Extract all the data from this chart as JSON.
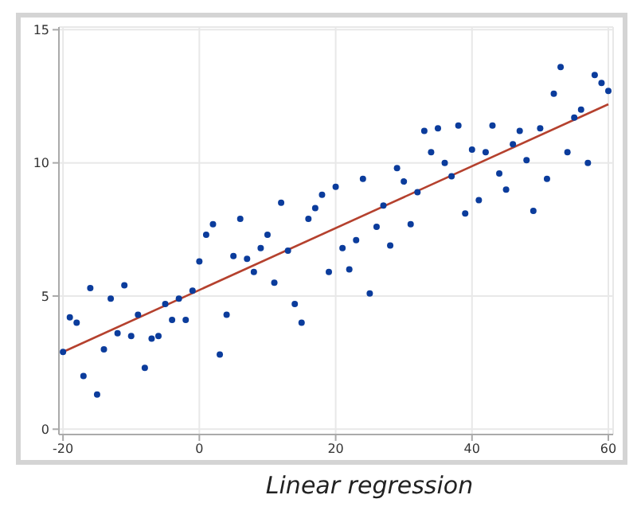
{
  "chart_data": {
    "type": "scatter",
    "title": "Linear regression",
    "xlim": [
      -20.6,
      60.7
    ],
    "xticks": [
      -20,
      0,
      20,
      40,
      60
    ],
    "ylim": [
      -0.2,
      15.1
    ],
    "yticks": [
      0,
      5,
      10,
      15
    ],
    "grid": true,
    "marker": "circle",
    "series": [
      {
        "color": "#0b3c9c",
        "x": [
          -20,
          -19,
          -18,
          -17,
          -16,
          -15,
          -14,
          -13,
          -12,
          -11,
          -10,
          -9,
          -8,
          -7,
          -6,
          -5,
          -4,
          -3,
          -2,
          -1,
          0,
          1,
          2,
          3,
          4,
          5,
          6,
          7,
          8,
          9,
          10,
          11,
          12,
          13,
          14,
          15,
          16,
          17,
          18,
          19,
          20,
          21,
          22,
          23,
          24,
          25,
          26,
          27,
          28,
          29,
          30,
          31,
          32,
          33,
          34,
          35,
          36,
          37,
          38,
          39,
          40,
          41,
          42,
          43,
          44,
          45,
          46,
          47,
          48,
          49,
          50,
          51,
          52,
          53,
          54,
          55,
          56,
          57,
          58,
          59,
          60
        ],
        "values": [
          2.9,
          4.2,
          4.0,
          2.0,
          5.3,
          1.3,
          3.0,
          4.9,
          3.6,
          5.4,
          3.5,
          4.3,
          2.3,
          3.4,
          3.5,
          4.7,
          4.1,
          4.9,
          4.1,
          5.2,
          6.3,
          7.3,
          7.7,
          2.8,
          4.3,
          6.5,
          7.9,
          6.4,
          5.9,
          6.8,
          7.3,
          5.5,
          8.5,
          6.7,
          4.7,
          4.0,
          7.9,
          8.3,
          8.8,
          5.9,
          9.1,
          6.8,
          6.0,
          7.1,
          9.4,
          5.1,
          7.6,
          8.4,
          6.9,
          9.8,
          9.3,
          7.7,
          8.9,
          11.2,
          10.4,
          11.3,
          10.0,
          9.5,
          11.4,
          8.1,
          10.5,
          8.6,
          10.4,
          11.4,
          9.6,
          9.0,
          10.7,
          11.2,
          10.1,
          8.2,
          11.3,
          9.4,
          12.6,
          13.6,
          10.4,
          11.7,
          12.0,
          10.0,
          13.3,
          13.0,
          12.7
        ]
      },
      {
        "type": "line",
        "color": "#b5412e",
        "marker": "none",
        "x": [
          -20,
          60
        ],
        "values": [
          2.9,
          12.2
        ]
      }
    ]
  }
}
